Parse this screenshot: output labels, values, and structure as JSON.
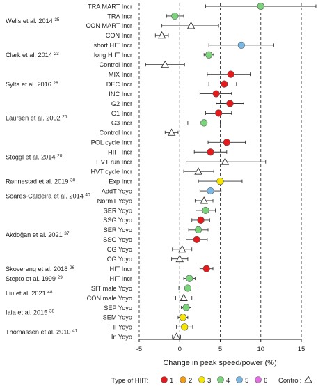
{
  "chart_data": {
    "type": "forest",
    "xlabel": "Change in peak speed/power (%)",
    "xlim": [
      -5,
      15
    ],
    "xticks": [
      -5,
      0,
      5,
      10,
      15
    ],
    "dashed_reference_lines_at": [
      -5,
      0,
      5,
      10,
      15
    ],
    "legend": {
      "title": "Type of HIIT:",
      "items": [
        {
          "label": "1",
          "color": "#e41a1c"
        },
        {
          "label": "2",
          "color": "#f39c12"
        },
        {
          "label": "3",
          "color": "#f5e500"
        },
        {
          "label": "4",
          "color": "#7bd47b"
        },
        {
          "label": "5",
          "color": "#7ab8e6"
        },
        {
          "label": "6",
          "color": "#e36ee3"
        }
      ],
      "control_label": "Control:"
    },
    "studies": [
      {
        "label": "Wells et al. 2014",
        "ref": "35",
        "rows": [
          0,
          3
        ]
      },
      {
        "label": "Clark et al. 2014",
        "ref": "23",
        "rows": [
          4,
          6
        ]
      },
      {
        "label": "Sylta et al. 2016",
        "ref": "28",
        "rows": [
          7,
          9
        ]
      },
      {
        "label": "Laursen et al. 2002",
        "ref": "25",
        "rows": [
          10,
          13
        ]
      },
      {
        "label": "Stöggl et al. 2014",
        "ref": "20",
        "rows": [
          14,
          17
        ]
      },
      {
        "label": "Rønnestad et al. 2019",
        "ref": "30",
        "rows": [
          18,
          18
        ]
      },
      {
        "label": "Soares-Caldeira  et al. 2014",
        "ref": "40",
        "rows": [
          19,
          20
        ]
      },
      {
        "label": "Akdoğan et al. 2021",
        "ref": "37",
        "rows": [
          21,
          26
        ]
      },
      {
        "label": "Skovereng et al. 2018",
        "ref": "26",
        "rows": [
          27,
          27
        ]
      },
      {
        "label": "Stepto et al. 1999",
        "ref": "29",
        "rows": [
          28,
          28
        ]
      },
      {
        "label": "Liu et al. 2021",
        "ref": "48",
        "rows": [
          29,
          30
        ]
      },
      {
        "label": "Iaia et al. 2015",
        "ref": "38",
        "rows": [
          31,
          32
        ]
      },
      {
        "label": "Thomassen et al. 2010",
        "ref": "41",
        "rows": [
          33,
          34
        ]
      }
    ],
    "rows": [
      {
        "label": "TRA MART Incr",
        "type": 4,
        "value": 10.0,
        "ci": [
          3.2,
          16.8
        ]
      },
      {
        "label": "TRA Incr",
        "type": 4,
        "value": -0.6,
        "ci": [
          -1.6,
          0.5
        ]
      },
      {
        "label": "CON MART Incr",
        "type": "control",
        "value": 1.4,
        "ci": [
          -2.2,
          4.8
        ]
      },
      {
        "label": "CON Incr",
        "type": "control",
        "value": -2.2,
        "ci": [
          -3.0,
          -1.4
        ]
      },
      {
        "label": "short HIT Incr",
        "type": 5,
        "value": 7.6,
        "ci": [
          3.6,
          11.6
        ]
      },
      {
        "label": "long H IT Incr",
        "type": 4,
        "value": 3.6,
        "ci": [
          3.0,
          4.2
        ]
      },
      {
        "label": "Control Incr",
        "type": "control",
        "value": -1.8,
        "ci": [
          -4.2,
          0.6
        ]
      },
      {
        "label": "MIX Incr",
        "type": 1,
        "value": 6.3,
        "ci": [
          3.4,
          8.7
        ]
      },
      {
        "label": "DEC Incr",
        "type": 1,
        "value": 5.5,
        "ci": [
          3.6,
          7.0
        ]
      },
      {
        "label": "INC Incr",
        "type": 1,
        "value": 4.5,
        "ci": [
          2.5,
          6.4
        ]
      },
      {
        "label": "G2 Incr",
        "type": 1,
        "value": 6.2,
        "ci": [
          4.5,
          7.9
        ]
      },
      {
        "label": "G1 Incr",
        "type": 1,
        "value": 4.8,
        "ci": [
          3.2,
          6.4
        ]
      },
      {
        "label": "G3 Incr",
        "type": 4,
        "value": 3.0,
        "ci": [
          1.0,
          5.0
        ]
      },
      {
        "label": "Control Incr",
        "type": "control",
        "value": -1.0,
        "ci": [
          -1.8,
          -0.2
        ]
      },
      {
        "label": "POL cycle Incr",
        "type": 1,
        "value": 5.8,
        "ci": [
          3.5,
          8.1
        ]
      },
      {
        "label": "HIIT Incr",
        "type": 1,
        "value": 3.8,
        "ci": [
          1.8,
          5.8
        ]
      },
      {
        "label": "HVT run Incr",
        "type": "control",
        "value": 5.6,
        "ci": [
          0.8,
          10.6
        ]
      },
      {
        "label": "HVT cycle Incr",
        "type": "control",
        "value": 2.3,
        "ci": [
          0.5,
          4.2
        ]
      },
      {
        "label": "Exp Incr",
        "type": 3,
        "value": 5.0,
        "ci": [
          2.3,
          7.7
        ]
      },
      {
        "label": "AddT Yoyo",
        "type": 5,
        "value": 3.8,
        "ci": [
          2.5,
          5.1
        ]
      },
      {
        "label": "NormT Yoyo",
        "type": "control",
        "value": 3.0,
        "ci": [
          1.9,
          4.1
        ]
      },
      {
        "label": "SER Yoyo",
        "type": 4,
        "value": 3.2,
        "ci": [
          2.0,
          4.4
        ]
      },
      {
        "label": "SSG Yoyo",
        "type": 1,
        "value": 2.6,
        "ci": [
          1.5,
          3.7
        ]
      },
      {
        "label": "SER Yoyo",
        "type": 4,
        "value": 2.3,
        "ci": [
          1.1,
          3.5
        ]
      },
      {
        "label": "SSG Yoyo",
        "type": 1,
        "value": 2.1,
        "ci": [
          0.8,
          3.4
        ]
      },
      {
        "label": "CG Yoyo",
        "type": "control",
        "value": 0.3,
        "ci": [
          -0.9,
          1.5
        ]
      },
      {
        "label": "CG Yoyo",
        "type": "control",
        "value": 0.0,
        "ci": [
          -1.0,
          1.0
        ]
      },
      {
        "label": "HIT Incr",
        "type": 1,
        "value": 3.3,
        "ci": [
          2.5,
          4.1
        ]
      },
      {
        "label": "HIT Incr",
        "type": 4,
        "value": 1.2,
        "ci": [
          0.5,
          1.9
        ]
      },
      {
        "label": "SIT male Yoyo",
        "type": 4,
        "value": 1.0,
        "ci": [
          -0.1,
          2.0
        ]
      },
      {
        "label": "CON male Yoyo",
        "type": "control",
        "value": 0.5,
        "ci": [
          -0.5,
          1.5
        ]
      },
      {
        "label": "SEP Yoyo",
        "type": 4,
        "value": 0.8,
        "ci": [
          0.2,
          1.4
        ]
      },
      {
        "label": "SEM Yoyo",
        "type": 3,
        "value": 0.4,
        "ci": [
          -0.2,
          1.0
        ]
      },
      {
        "label": "HI Yoyo",
        "type": 3,
        "value": 0.6,
        "ci": [
          -0.4,
          1.6
        ]
      },
      {
        "label": "In Yoyo",
        "type": "control",
        "value": -0.4,
        "ci": [
          -0.9,
          0.1
        ]
      }
    ]
  }
}
